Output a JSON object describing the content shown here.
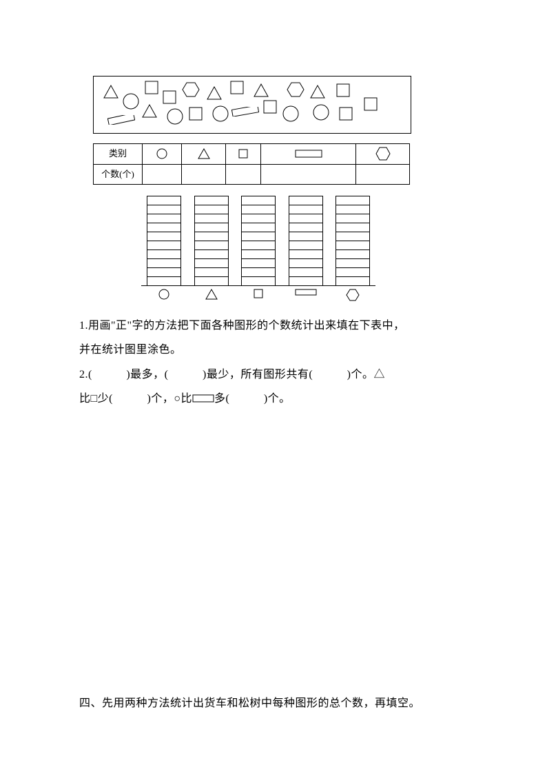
{
  "table": {
    "header_label": "类别",
    "count_label": "个数(个)"
  },
  "chart": {
    "bar_cells": 10,
    "num_bars": 5
  },
  "q1": {
    "line1": "1.用画\"正\"字的方法把下面各种图形的个数统计出来填在下表中，",
    "line2": "并在统计图里涂色。"
  },
  "q2": {
    "p1": "2.(　　　)最多，(　　　)最少，所有图形共有(　　　)个。△",
    "p2a": "比□少(　　　)个，○比",
    "p2b": "多(　　　)个。"
  },
  "section4": "四、先用两种方法统计出货车和松树中每种图形的总个数，再填空。",
  "style": {
    "stroke": "#000000",
    "fill": "none",
    "stroke_width": 1
  }
}
